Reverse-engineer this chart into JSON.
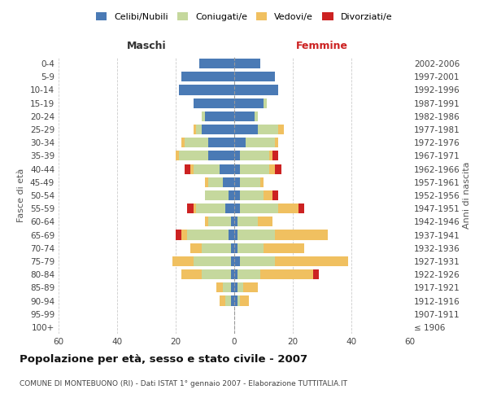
{
  "age_groups": [
    "100+",
    "95-99",
    "90-94",
    "85-89",
    "80-84",
    "75-79",
    "70-74",
    "65-69",
    "60-64",
    "55-59",
    "50-54",
    "45-49",
    "40-44",
    "35-39",
    "30-34",
    "25-29",
    "20-24",
    "15-19",
    "10-14",
    "5-9",
    "0-4"
  ],
  "birth_years": [
    "≤ 1906",
    "1907-1911",
    "1912-1916",
    "1917-1921",
    "1922-1926",
    "1927-1931",
    "1932-1936",
    "1937-1941",
    "1942-1946",
    "1947-1951",
    "1952-1956",
    "1957-1961",
    "1962-1966",
    "1967-1971",
    "1972-1976",
    "1977-1981",
    "1982-1986",
    "1987-1991",
    "1992-1996",
    "1997-2001",
    "2002-2006"
  ],
  "male_celibi": [
    0,
    0,
    1,
    1,
    1,
    1,
    1,
    2,
    1,
    3,
    2,
    4,
    5,
    9,
    9,
    11,
    10,
    14,
    19,
    18,
    12
  ],
  "male_coniugati": [
    0,
    0,
    2,
    3,
    10,
    13,
    10,
    14,
    8,
    10,
    8,
    5,
    9,
    10,
    8,
    2,
    1,
    0,
    0,
    0,
    0
  ],
  "male_vedovi": [
    0,
    0,
    2,
    2,
    7,
    7,
    4,
    2,
    1,
    1,
    0,
    1,
    1,
    1,
    1,
    1,
    0,
    0,
    0,
    0,
    0
  ],
  "male_divorziati": [
    0,
    0,
    0,
    0,
    0,
    0,
    0,
    2,
    0,
    2,
    0,
    0,
    2,
    0,
    0,
    0,
    0,
    0,
    0,
    0,
    0
  ],
  "female_celibi": [
    0,
    0,
    1,
    1,
    1,
    2,
    1,
    1,
    1,
    2,
    2,
    2,
    2,
    2,
    4,
    8,
    7,
    10,
    15,
    14,
    9
  ],
  "female_coniugati": [
    0,
    0,
    1,
    2,
    8,
    12,
    9,
    13,
    7,
    13,
    8,
    7,
    10,
    10,
    10,
    7,
    1,
    1,
    0,
    0,
    0
  ],
  "female_vedovi": [
    0,
    0,
    3,
    5,
    18,
    25,
    14,
    18,
    5,
    7,
    3,
    1,
    2,
    1,
    1,
    2,
    0,
    0,
    0,
    0,
    0
  ],
  "female_divorziati": [
    0,
    0,
    0,
    0,
    2,
    0,
    0,
    0,
    0,
    2,
    2,
    0,
    2,
    2,
    0,
    0,
    0,
    0,
    0,
    0,
    0
  ],
  "color_celibi": "#4a7ab5",
  "color_coniugati": "#c5d89d",
  "color_vedovi": "#f0c060",
  "color_divorziati": "#cc2222",
  "title": "Popolazione per età, sesso e stato civile - 2007",
  "subtitle": "COMUNE DI MONTEBUONO (RI) - Dati ISTAT 1° gennaio 2007 - Elaborazione TUTTITALIA.IT",
  "xlabel_left": "Maschi",
  "xlabel_right": "Femmine",
  "ylabel_left": "Fasce di età",
  "ylabel_right": "Anni di nascita",
  "xlim": 60,
  "background_color": "#ffffff",
  "grid_color": "#cccccc"
}
